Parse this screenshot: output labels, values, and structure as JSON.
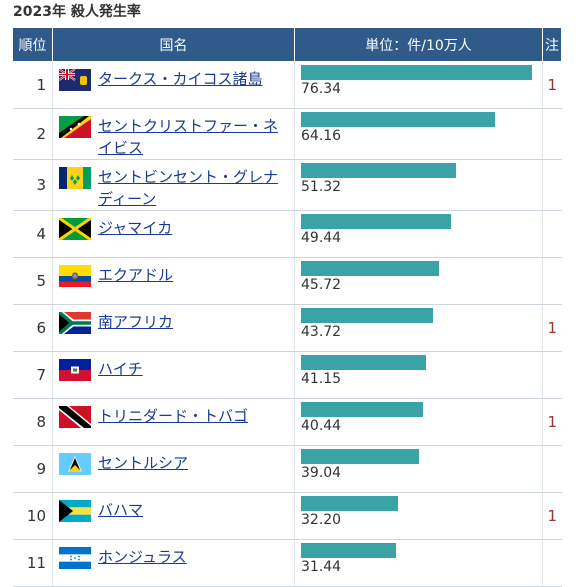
{
  "page": {
    "title": "2023年 殺人発生率"
  },
  "table": {
    "headers": {
      "rank": "順位",
      "country": "国名",
      "value": "単位：件/10万人",
      "note": "注"
    },
    "max_value": 78,
    "rows": [
      {
        "rank": "1",
        "country": "タークス・カイコス諸島",
        "value": "76.34",
        "note": "1",
        "flag": "turks-caicos"
      },
      {
        "rank": "2",
        "country": "セントクリストファー・ネイビス",
        "value": "64.16",
        "note": "",
        "flag": "saint-kitts-nevis"
      },
      {
        "rank": "3",
        "country": "セントビンセント・グレナディーン",
        "value": "51.32",
        "note": "",
        "flag": "saint-vincent"
      },
      {
        "rank": "4",
        "country": "ジャマイカ",
        "value": "49.44",
        "note": "",
        "flag": "jamaica"
      },
      {
        "rank": "5",
        "country": "エクアドル",
        "value": "45.72",
        "note": "",
        "flag": "ecuador"
      },
      {
        "rank": "6",
        "country": "南アフリカ",
        "value": "43.72",
        "note": "1",
        "flag": "south-africa"
      },
      {
        "rank": "7",
        "country": "ハイチ",
        "value": "41.15",
        "note": "",
        "flag": "haiti"
      },
      {
        "rank": "8",
        "country": "トリニダード・トバゴ",
        "value": "40.44",
        "note": "1",
        "flag": "trinidad-tobago"
      },
      {
        "rank": "9",
        "country": "セントルシア",
        "value": "39.04",
        "note": "",
        "flag": "saint-lucia"
      },
      {
        "rank": "10",
        "country": "バハマ",
        "value": "32.20",
        "note": "1",
        "flag": "bahamas"
      },
      {
        "rank": "11",
        "country": "ホンジュラス",
        "value": "31.44",
        "note": "",
        "flag": "honduras"
      }
    ]
  },
  "colors": {
    "header_bg": "#2f5a8a",
    "bar": "#3aa3a6",
    "link": "#1a3a96",
    "note": "#a13030"
  }
}
